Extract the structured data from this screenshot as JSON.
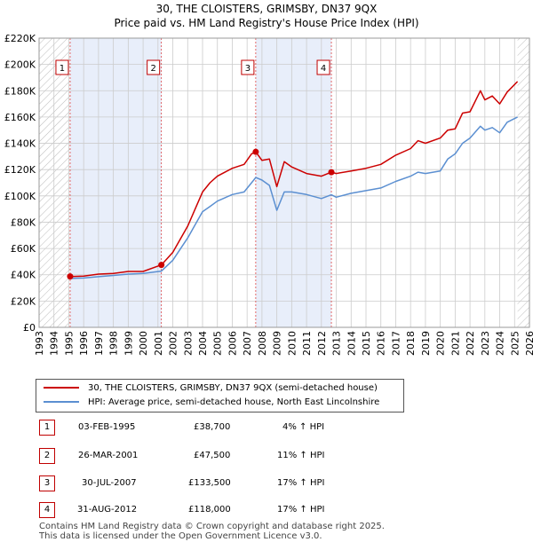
{
  "header": {
    "title": "30, THE CLOISTERS, GRIMSBY, DN37 9QX",
    "subtitle": "Price paid vs. HM Land Registry's House Price Index (HPI)"
  },
  "colors": {
    "property": "#cc0000",
    "hpi": "#5b8fd1",
    "shade": "#e8eefa",
    "grid": "#cccccc",
    "marker": "#c00000"
  },
  "legend": {
    "property": "30, THE CLOISTERS, GRIMSBY, DN37 9QX (semi-detached house)",
    "hpi": "HPI: Average price, semi-detached house, North East Lincolnshire"
  },
  "transactions": [
    {
      "num": "1",
      "date": "03-FEB-1995",
      "price": "£38,700",
      "hpi": "4% ↑ HPI"
    },
    {
      "num": "2",
      "date": "26-MAR-2001",
      "price": "£47,500",
      "hpi": "11% ↑ HPI"
    },
    {
      "num": "3",
      "date": "30-JUL-2007",
      "price": "£133,500",
      "hpi": "17% ↑ HPI"
    },
    {
      "num": "4",
      "date": "31-AUG-2012",
      "price": "£118,000",
      "hpi": "17% ↑ HPI"
    }
  ],
  "footer": {
    "line1": "Contains HM Land Registry data © Crown copyright and database right 2025.",
    "line2": "This data is licensed under the Open Government Licence v3.0."
  },
  "chart_data": {
    "type": "line",
    "title": "30, THE CLOISTERS, GRIMSBY, DN37 9QX",
    "subtitle": "Price paid vs. HM Land Registry's House Price Index (HPI)",
    "xlabel": "",
    "ylabel": "",
    "xlim": [
      1993,
      2026
    ],
    "ylim": [
      0,
      220000
    ],
    "x_ticks": [
      1993,
      1994,
      1995,
      1996,
      1997,
      1998,
      1999,
      2000,
      2001,
      2002,
      2003,
      2004,
      2005,
      2006,
      2007,
      2008,
      2009,
      2010,
      2011,
      2012,
      2013,
      2014,
      2015,
      2016,
      2017,
      2018,
      2019,
      2020,
      2021,
      2022,
      2023,
      2024,
      2025,
      2026
    ],
    "y_ticks": [
      0,
      20000,
      40000,
      60000,
      80000,
      100000,
      120000,
      140000,
      160000,
      180000,
      200000,
      220000
    ],
    "y_tick_labels": [
      "£0",
      "£20K",
      "£40K",
      "£60K",
      "£80K",
      "£100K",
      "£120K",
      "£140K",
      "£160K",
      "£180K",
      "£200K",
      "£220K"
    ],
    "grid": true,
    "legend_position": "below",
    "hatched_ranges": [
      [
        1993,
        1995.09
      ],
      [
        2025.2,
        2026
      ]
    ],
    "shaded_ranges": [
      [
        1995.09,
        2001.23
      ],
      [
        2007.58,
        2012.67
      ]
    ],
    "markers": [
      {
        "label": "1",
        "x": 1995.09,
        "y": 38700
      },
      {
        "label": "2",
        "x": 2001.23,
        "y": 47500
      },
      {
        "label": "3",
        "x": 2007.58,
        "y": 133500
      },
      {
        "label": "4",
        "x": 2012.67,
        "y": 118000
      }
    ],
    "series": [
      {
        "name": "30, THE CLOISTERS, GRIMSBY, DN37 9QX (semi-detached house)",
        "color": "#cc0000",
        "x": [
          1995.09,
          1996,
          1997,
          1998,
          1999,
          2000,
          2001.23,
          2002,
          2003,
          2004,
          2004.5,
          2005,
          2006,
          2006.8,
          2007.3,
          2007.58,
          2008,
          2008.5,
          2009,
          2009.5,
          2010,
          2011,
          2012,
          2012.67,
          2013,
          2014,
          2015,
          2016,
          2017,
          2018,
          2018.5,
          2019,
          2020,
          2020.5,
          2021,
          2021.5,
          2022,
          2022.7,
          2023,
          2023.5,
          2024,
          2024.5,
          2025.2
        ],
        "values": [
          38700,
          39000,
          40500,
          41000,
          42500,
          42500,
          47500,
          57000,
          77000,
          103000,
          110000,
          115000,
          121000,
          124000,
          132000,
          133500,
          127000,
          128000,
          107000,
          126000,
          122000,
          117000,
          115000,
          118000,
          117000,
          119000,
          121000,
          124000,
          131000,
          136000,
          142000,
          140000,
          144000,
          150000,
          151000,
          163000,
          164000,
          180000,
          173000,
          176000,
          170000,
          179000,
          187000
        ]
      },
      {
        "name": "HPI: Average price, semi-detached house, North East Lincolnshire",
        "color": "#5b8fd1",
        "x": [
          1995.09,
          1996,
          1997,
          1998,
          1999,
          2000,
          2001.23,
          2002,
          2003,
          2004,
          2004.5,
          2005,
          2006,
          2006.8,
          2007.3,
          2007.58,
          2008,
          2008.5,
          2009,
          2009.5,
          2010,
          2011,
          2012,
          2012.67,
          2013,
          2014,
          2015,
          2016,
          2017,
          2018,
          2018.5,
          2019,
          2020,
          2020.5,
          2021,
          2021.5,
          2022,
          2022.7,
          2023,
          2023.5,
          2024,
          2024.5,
          2025.2
        ],
        "values": [
          37200,
          37500,
          38500,
          39500,
          40500,
          41000,
          42800,
          51000,
          68000,
          88000,
          92000,
          96000,
          101000,
          103000,
          110000,
          114000,
          112000,
          108000,
          89000,
          103000,
          103000,
          101000,
          98000,
          100800,
          99000,
          102000,
          104000,
          106000,
          111000,
          115000,
          118000,
          117000,
          119000,
          128000,
          132000,
          140000,
          144000,
          153000,
          150000,
          152000,
          148000,
          156000,
          160000
        ]
      }
    ]
  }
}
